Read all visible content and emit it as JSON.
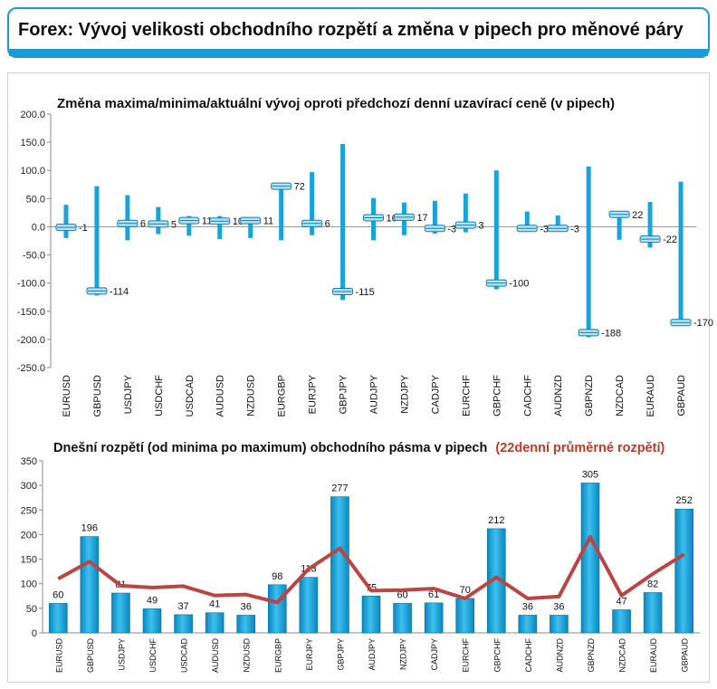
{
  "header": {
    "title": "Forex: Vývoj velikosti obchodního rozpětí a změna v pipech pro měnové páry"
  },
  "colors": {
    "bar": "#1aa3d9",
    "bar_dark": "#0b7fb3",
    "marker": "#b9e3f5",
    "avg_line": "#b94545",
    "title_red": "#c0392b",
    "header_border": "#1a9bd7"
  },
  "chart_data": [
    {
      "type": "range_marker",
      "title": "Změna maxima/minima/aktuální vývoj oproti předchozí denní uzavírací ceně (v pipech)",
      "ylim": [
        -250,
        200
      ],
      "yticks": [
        "200.0",
        "150.0",
        "100.0",
        "50.0",
        "0.0",
        "-50.0",
        "-100.0",
        "-150.0",
        "-200.0",
        "-250.0"
      ],
      "categories": [
        "EURUSD",
        "GBPUSD",
        "USDJPY",
        "USDCHF",
        "USDCAD",
        "AUDUSD",
        "NZDUSD",
        "EURGBP",
        "EURJPY",
        "GBPJPY",
        "AUDJPY",
        "NZDJPY",
        "CADJPY",
        "EURCHF",
        "GBPCHF",
        "CADCHF",
        "AUDNZD",
        "GBPNZD",
        "NZDCAD",
        "EURAUD",
        "GBPAUD"
      ],
      "high": [
        39,
        72,
        56,
        35,
        19,
        19,
        16,
        72,
        97,
        147,
        51,
        43,
        46,
        59,
        100,
        27,
        20,
        107,
        24,
        44,
        80
      ],
      "low": [
        -20,
        -122,
        -24,
        -13,
        -16,
        -22,
        -20,
        -24,
        -15,
        -130,
        -24,
        -15,
        -12,
        -10,
        -111,
        -7,
        -7,
        -196,
        -23,
        -37,
        -172
      ],
      "current": [
        -1,
        -114,
        6,
        5,
        11,
        10,
        11,
        72,
        6,
        -115,
        16,
        17,
        -3,
        3,
        -100,
        -3,
        -3,
        -188,
        22,
        -22,
        -170
      ],
      "labels": [
        "-1",
        "-114",
        "6",
        "5",
        "11",
        "10",
        "11",
        "72",
        "6",
        "-115",
        "16",
        "17",
        "-3",
        "3",
        "-100",
        "-3",
        "-3",
        "-188",
        "22",
        "-22",
        "-170"
      ]
    },
    {
      "type": "bar",
      "title_main": "Dnešní rozpětí (od minima po maximum) obchodního pásma v pipech",
      "title_accent": "(22denní průměrné rozpětí)",
      "ylim": [
        0,
        350
      ],
      "yticks": [
        "350",
        "300",
        "250",
        "200",
        "150",
        "100",
        "50",
        "0"
      ],
      "categories": [
        "EURUSD",
        "GBPUSD",
        "USDJPY",
        "USDCHF",
        "USDCAD",
        "AUDUSD",
        "NZDUSD",
        "EURGBP",
        "EURJPY",
        "GBPJPY",
        "AUDJPY",
        "NZDJPY",
        "CADJPY",
        "EURCHF",
        "GBPCHF",
        "CADCHF",
        "AUDNZD",
        "GBPNZD",
        "NZDCAD",
        "EURAUD",
        "GBPAUD"
      ],
      "values": [
        60,
        196,
        81,
        49,
        37,
        41,
        36,
        98,
        113,
        277,
        75,
        60,
        61,
        70,
        212,
        36,
        36,
        305,
        47,
        82,
        252
      ],
      "labels": [
        "60",
        "196",
        "81",
        "49",
        "37",
        "41",
        "36",
        "98",
        "113",
        "277",
        "75",
        "60",
        "61",
        "70",
        "212",
        "36",
        "36",
        "305",
        "47",
        "82",
        "252"
      ],
      "average": [
        110,
        145,
        96,
        92,
        95,
        76,
        78,
        62,
        130,
        172,
        86,
        87,
        90,
        70,
        113,
        70,
        74,
        195,
        76,
        120,
        160
      ]
    }
  ]
}
